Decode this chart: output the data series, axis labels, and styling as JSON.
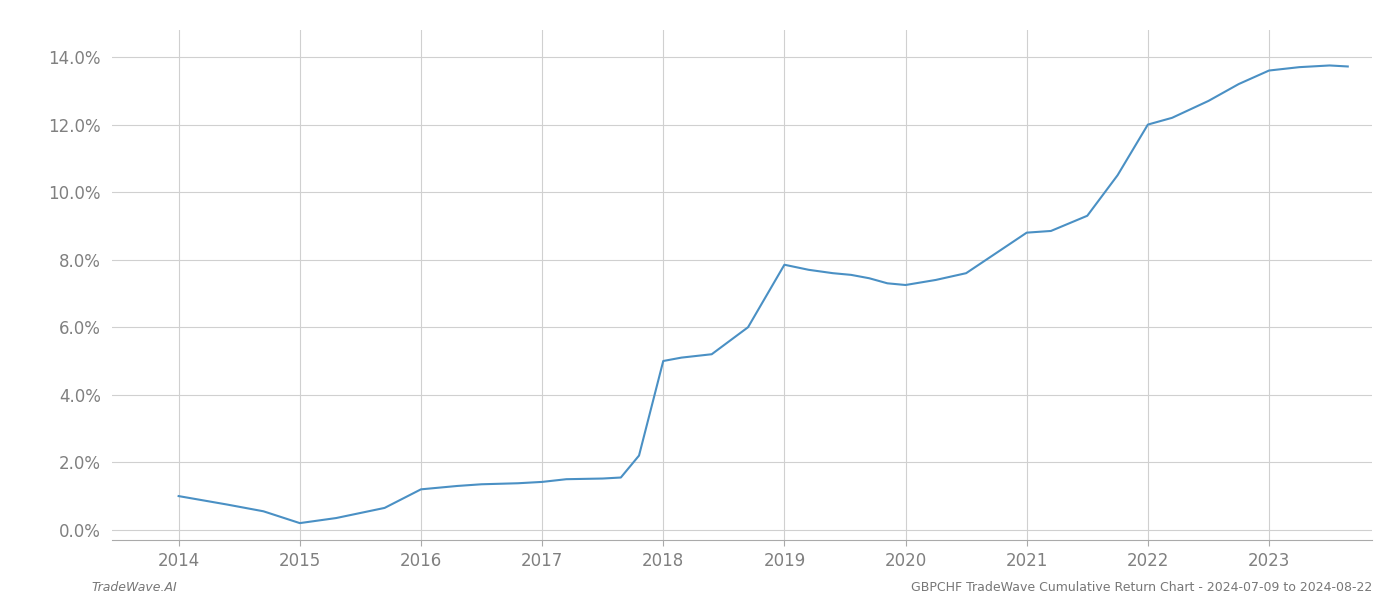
{
  "x_values": [
    2014.0,
    2014.4,
    2014.7,
    2015.0,
    2015.3,
    2015.7,
    2016.0,
    2016.3,
    2016.5,
    2016.8,
    2017.0,
    2017.2,
    2017.5,
    2017.65,
    2017.8,
    2018.0,
    2018.15,
    2018.4,
    2018.7,
    2019.0,
    2019.2,
    2019.4,
    2019.55,
    2019.7,
    2019.85,
    2020.0,
    2020.25,
    2020.5,
    2020.75,
    2021.0,
    2021.2,
    2021.5,
    2021.75,
    2022.0,
    2022.2,
    2022.5,
    2022.75,
    2023.0,
    2023.25,
    2023.5,
    2023.65
  ],
  "y_values": [
    1.0,
    0.75,
    0.55,
    0.2,
    0.35,
    0.65,
    1.2,
    1.3,
    1.35,
    1.38,
    1.42,
    1.5,
    1.52,
    1.55,
    2.2,
    5.0,
    5.1,
    5.2,
    6.0,
    7.85,
    7.7,
    7.6,
    7.55,
    7.45,
    7.3,
    7.25,
    7.4,
    7.6,
    8.2,
    8.8,
    8.85,
    9.3,
    10.5,
    12.0,
    12.2,
    12.7,
    13.2,
    13.6,
    13.7,
    13.75,
    13.72
  ],
  "line_color": "#4a90c4",
  "line_width": 1.5,
  "background_color": "#ffffff",
  "grid_color": "#d0d0d0",
  "tick_label_color": "#808080",
  "footer_left": "TradeWave.AI",
  "footer_right": "GBPCHF TradeWave Cumulative Return Chart - 2024-07-09 to 2024-08-22",
  "ytick_labels": [
    "0.0%",
    "2.0%",
    "4.0%",
    "6.0%",
    "8.0%",
    "10.0%",
    "12.0%",
    "14.0%"
  ],
  "ytick_values": [
    0.0,
    2.0,
    4.0,
    6.0,
    8.0,
    10.0,
    12.0,
    14.0
  ],
  "xtick_labels": [
    "2014",
    "2015",
    "2016",
    "2017",
    "2018",
    "2019",
    "2020",
    "2021",
    "2022",
    "2023"
  ],
  "xtick_values": [
    2014,
    2015,
    2016,
    2017,
    2018,
    2019,
    2020,
    2021,
    2022,
    2023
  ],
  "xlim": [
    2013.45,
    2023.85
  ],
  "ylim": [
    -0.3,
    14.8
  ],
  "figsize": [
    14.0,
    6.0
  ],
  "dpi": 100,
  "tick_fontsize": 12,
  "footer_fontsize": 9
}
